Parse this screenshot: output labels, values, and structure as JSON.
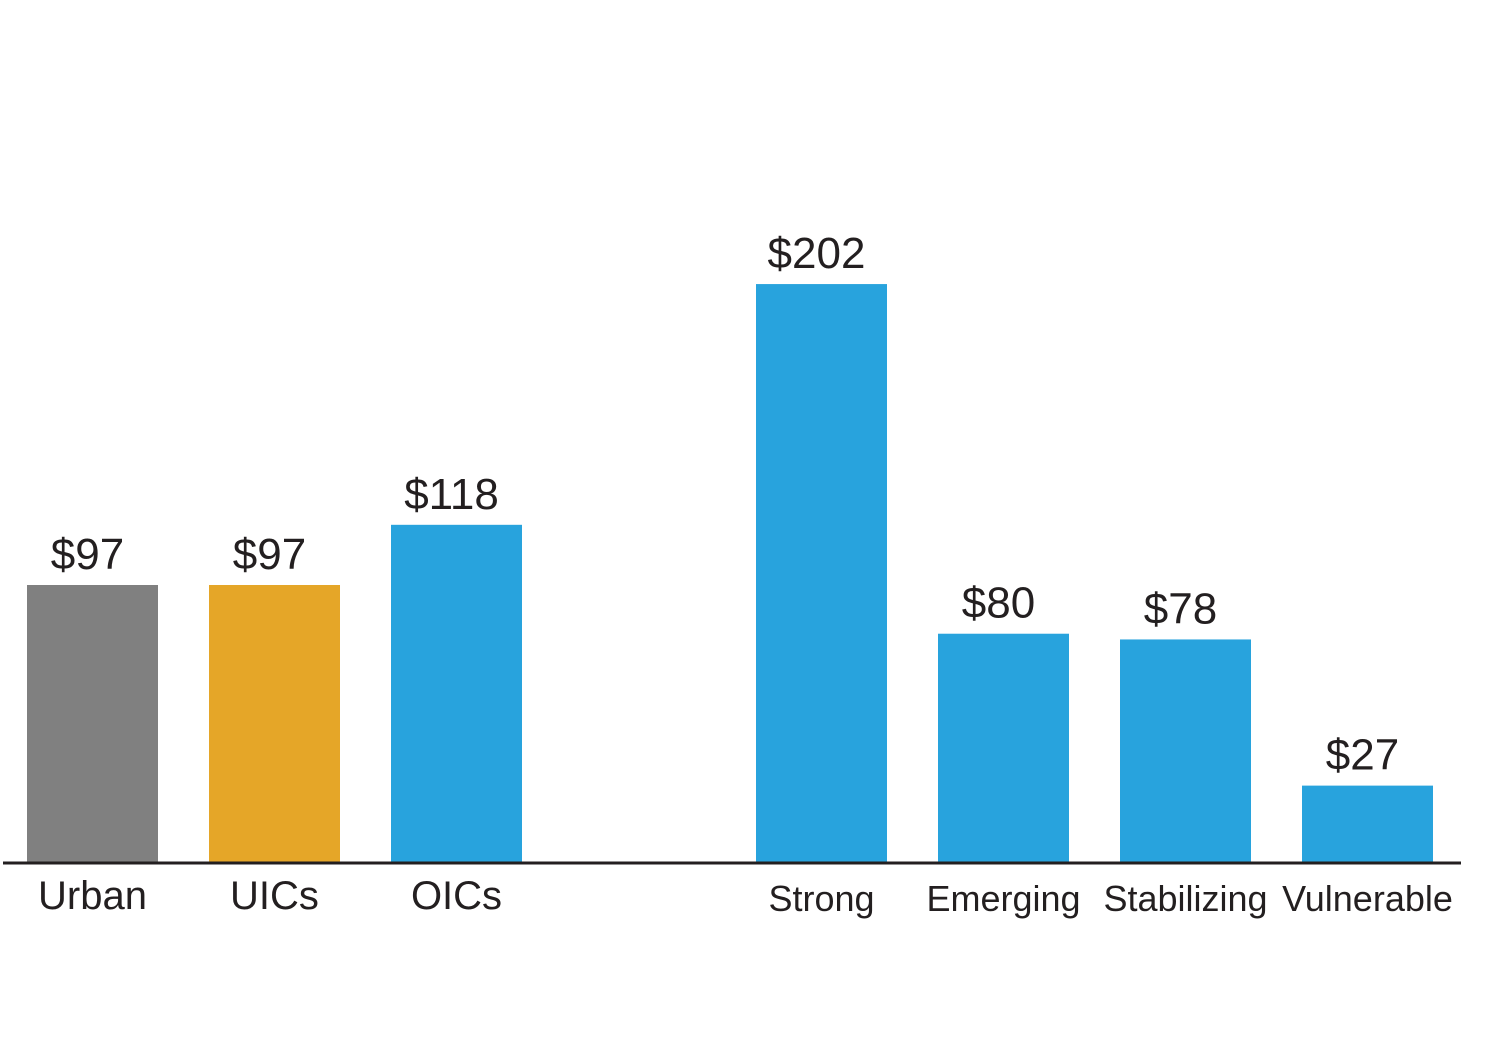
{
  "chart_data": {
    "type": "bar",
    "title": "",
    "xlabel": "",
    "ylabel": "",
    "ylim": [
      0,
      220
    ],
    "grid": false,
    "groups": [
      {
        "categories": [
          "Urban",
          "UICs",
          "OICs"
        ],
        "values": [
          97,
          97,
          118
        ],
        "value_labels": [
          "$97",
          "$97",
          "$118"
        ],
        "colors": [
          "#808080",
          "#e5a628",
          "#28a3dd"
        ]
      },
      {
        "categories": [
          "Strong",
          "Emerging",
          "Stabilizing",
          "Vulnerable"
        ],
        "values": [
          202,
          80,
          78,
          27
        ],
        "value_labels": [
          "$202",
          "$80",
          "$78",
          "$27"
        ],
        "colors": [
          "#28a3dd",
          "#28a3dd",
          "#28a3dd",
          "#28a3dd"
        ]
      }
    ],
    "colors": {
      "axis": "#231f20",
      "text": "#231f20"
    }
  }
}
